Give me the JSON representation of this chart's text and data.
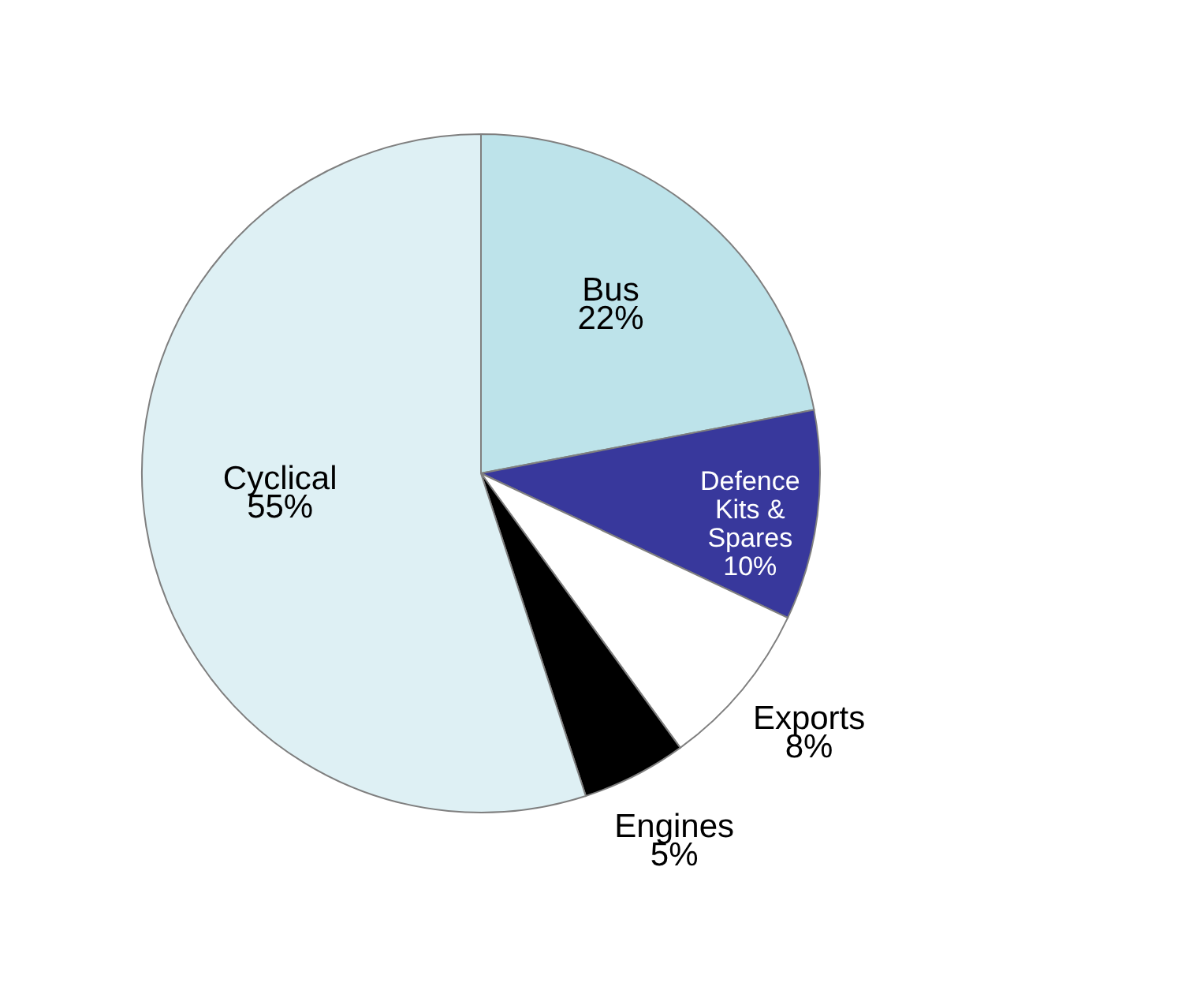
{
  "chart_data": {
    "type": "pie",
    "categories": [
      "Bus",
      "Defence Kits & Spares",
      "Exports",
      "Engines",
      "Cyclical"
    ],
    "values": [
      22,
      10,
      8,
      5,
      55
    ],
    "value_labels": [
      "22%",
      "10%",
      "8%",
      "5%",
      "55%"
    ],
    "colors": [
      "#bde3ea",
      "#38389c",
      "#ffffff",
      "#000000",
      "#def0f4"
    ],
    "legend": false
  }
}
